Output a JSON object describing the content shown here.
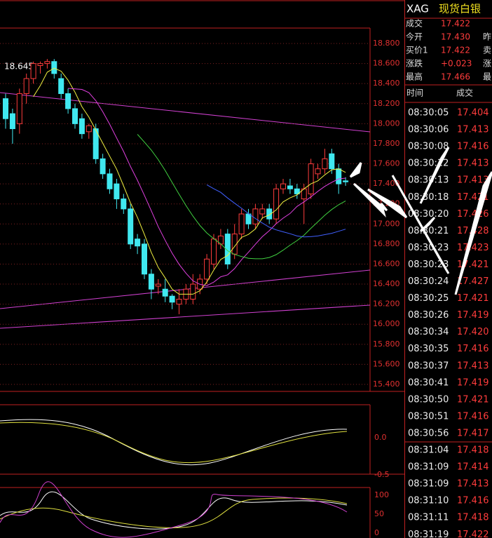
{
  "chart_data": {
    "type": "candlestick",
    "annotation": "18.645",
    "open": [
      18.25,
      18.1,
      18.0,
      18.3,
      18.45,
      18.58,
      18.6,
      18.62,
      18.45,
      18.3,
      18.15,
      18.05,
      17.92,
      17.95,
      17.65,
      17.5,
      17.4,
      17.25,
      17.15,
      16.85,
      16.8,
      16.5,
      16.38,
      16.35,
      16.28,
      16.2,
      16.25,
      16.25,
      16.35,
      16.45,
      16.6,
      16.8,
      16.9,
      16.7,
      16.9,
      17.1,
      17.0,
      17.1,
      17.15,
      17.05,
      17.35,
      17.38,
      17.35,
      17.25,
      17.3,
      17.5,
      17.55,
      17.7,
      17.55,
      17.43
    ],
    "high": [
      18.3,
      18.15,
      18.35,
      18.5,
      18.62,
      18.62,
      18.645,
      18.645,
      18.5,
      18.35,
      18.2,
      18.1,
      18.0,
      18.0,
      17.7,
      17.55,
      17.45,
      17.3,
      17.2,
      16.9,
      16.85,
      16.55,
      16.45,
      16.45,
      16.3,
      16.35,
      16.4,
      16.5,
      16.5,
      16.7,
      16.9,
      16.95,
      16.95,
      17.0,
      17.15,
      17.15,
      17.2,
      17.2,
      17.2,
      17.4,
      17.45,
      17.45,
      17.4,
      17.4,
      17.65,
      17.6,
      17.75,
      17.75,
      17.6,
      17.466
    ],
    "low": [
      17.95,
      17.8,
      17.9,
      18.2,
      18.4,
      18.5,
      18.55,
      18.45,
      18.25,
      18.1,
      17.95,
      17.85,
      17.85,
      17.6,
      17.45,
      17.3,
      17.15,
      17.1,
      16.75,
      16.7,
      16.45,
      16.25,
      16.3,
      16.22,
      16.15,
      16.1,
      16.2,
      16.2,
      16.3,
      16.4,
      16.55,
      16.75,
      16.55,
      16.65,
      16.85,
      16.95,
      16.95,
      17.05,
      17.0,
      17.0,
      17.3,
      17.3,
      17.25,
      17.0,
      17.25,
      17.45,
      17.5,
      17.5,
      17.3,
      17.38
    ],
    "close": [
      18.05,
      17.95,
      18.3,
      18.45,
      18.6,
      18.6,
      18.62,
      18.5,
      18.3,
      18.15,
      18.0,
      17.9,
      17.98,
      17.65,
      17.5,
      17.35,
      17.25,
      17.15,
      16.8,
      16.78,
      16.5,
      16.35,
      16.4,
      16.28,
      16.22,
      16.25,
      16.35,
      16.4,
      16.45,
      16.65,
      16.85,
      16.88,
      16.6,
      16.9,
      17.1,
      17.0,
      17.15,
      17.15,
      17.05,
      17.35,
      17.4,
      17.35,
      17.3,
      17.35,
      17.6,
      17.55,
      17.65,
      17.55,
      17.4,
      17.42
    ],
    "ylim": [
      15.3,
      18.95
    ],
    "yticks": [
      {
        "value": 18.8,
        "label": "18.800"
      },
      {
        "value": 18.6,
        "label": "18.600"
      },
      {
        "value": 18.4,
        "label": "18.400"
      },
      {
        "value": 18.2,
        "label": "18.200"
      },
      {
        "value": 18.0,
        "label": "18.000"
      },
      {
        "value": 17.8,
        "label": "17.800"
      },
      {
        "value": 17.6,
        "label": "17.600"
      },
      {
        "value": 17.4,
        "label": "17.400"
      },
      {
        "value": 17.2,
        "label": "17.200"
      },
      {
        "value": 17.0,
        "label": "17.000"
      },
      {
        "value": 16.8,
        "label": "16.800"
      },
      {
        "value": 16.6,
        "label": "16.600"
      },
      {
        "value": 16.4,
        "label": "16.400"
      },
      {
        "value": 16.2,
        "label": "16.200"
      },
      {
        "value": 16.0,
        "label": "16.000"
      },
      {
        "value": 15.8,
        "label": "15.800"
      },
      {
        "value": 15.6,
        "label": "15.600"
      },
      {
        "value": 15.4,
        "label": "15.400"
      }
    ]
  },
  "macd": {
    "ticks": [
      "0.0",
      "-0.5"
    ]
  },
  "kdj": {
    "ticks": [
      "100",
      "50",
      "0"
    ]
  },
  "quote": {
    "symbol": "XAG",
    "name": "现货白银",
    "rows": [
      [
        "成交",
        "17.422",
        ""
      ],
      [
        "今开",
        "17.430",
        "昨"
      ],
      [
        "买价1",
        "17.422",
        "卖"
      ],
      [
        "涨跌",
        "+0.023",
        "涨"
      ],
      [
        "最高",
        "17.466",
        "最"
      ]
    ]
  },
  "trades": {
    "header": [
      "时间",
      "成交"
    ],
    "rows": [
      [
        "08:30:05",
        "17.404"
      ],
      [
        "08:30:06",
        "17.413"
      ],
      [
        "08:30:08",
        "17.416"
      ],
      [
        "08:30:12",
        "17.413"
      ],
      [
        "08:30:13",
        "17.413"
      ],
      [
        "08:30:18",
        "17.421"
      ],
      [
        "08:30:20",
        "17.426"
      ],
      [
        "08:30:21",
        "17.428"
      ],
      [
        "08:30:23",
        "17.423"
      ],
      [
        "08:30:23",
        "17.421"
      ],
      [
        "08:30:24",
        "17.427"
      ],
      [
        "08:30:25",
        "17.421"
      ],
      [
        "08:30:26",
        "17.419"
      ],
      [
        "08:30:34",
        "17.420"
      ],
      [
        "08:30:35",
        "17.416"
      ],
      [
        "08:30:37",
        "17.413"
      ],
      [
        "08:30:41",
        "17.419"
      ],
      [
        "08:30:50",
        "17.421"
      ],
      [
        "08:30:51",
        "17.416"
      ],
      [
        "08:30:56",
        "17.417"
      ],
      [
        "08:31:04",
        "17.418"
      ],
      [
        "08:31:09",
        "17.414"
      ],
      [
        "08:31:09",
        "17.413"
      ],
      [
        "08:31:10",
        "17.416"
      ],
      [
        "08:31:11",
        "17.418"
      ],
      [
        "08:31:19",
        "17.422"
      ]
    ]
  }
}
